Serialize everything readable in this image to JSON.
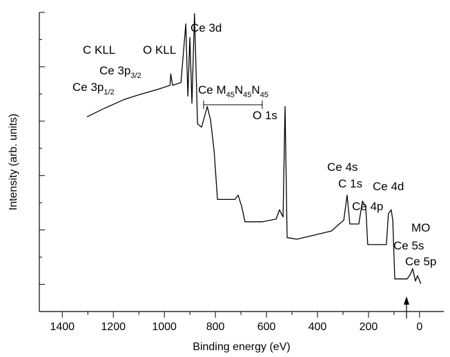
{
  "chart_data": {
    "type": "line",
    "xlabel": "Binding energy (eV)",
    "ylabel": "Intensity (arb. units)",
    "xlim": [
      1490,
      -95
    ],
    "ylim": [
      0,
      5.5
    ],
    "xticks": [
      1400,
      1200,
      1000,
      800,
      600,
      400,
      200,
      0
    ],
    "xticks_minor": [
      1300,
      1100,
      900,
      700,
      500,
      300,
      100
    ],
    "yticks": [
      0.5,
      1.5,
      2.5,
      3.5,
      4.5,
      5.5
    ],
    "yticks_minor": [
      1,
      2,
      3,
      4,
      5
    ],
    "series": [
      {
        "color": "#000000",
        "x": [
          1303,
          1238,
          1157,
          1103,
          1022,
          978,
          975,
          968,
          935,
          916,
          908,
          900,
          892,
          882,
          870,
          854,
          832,
          819,
          805,
          792,
          724,
          711,
          697,
          684,
          616,
          562,
          549,
          535,
          527,
          519,
          481,
          346,
          297,
          284,
          273,
          238,
          224,
          211,
          203,
          130,
          122,
          111,
          105,
          97,
          49,
          35,
          27,
          16,
          8,
          -5
        ],
        "values": [
          3.58,
          3.73,
          3.9,
          3.98,
          4.09,
          4.16,
          4.37,
          4.16,
          4.21,
          5.29,
          3.96,
          5.04,
          3.83,
          5.48,
          3.45,
          3.39,
          3.77,
          3.52,
          2.94,
          2.06,
          2.06,
          2.14,
          1.93,
          1.65,
          1.65,
          1.7,
          1.87,
          1.74,
          3.77,
          1.36,
          1.33,
          1.48,
          1.68,
          2.14,
          1.61,
          1.61,
          2.03,
          1.93,
          1.23,
          1.23,
          1.8,
          1.87,
          1.68,
          0.6,
          0.6,
          0.69,
          0.79,
          0.56,
          0.66,
          0.51
        ]
      }
    ],
    "annotations": [
      {
        "parts": [
          "C KLL"
        ]
      },
      {
        "parts": [
          "O KLL"
        ]
      },
      {
        "parts": [
          "Ce 3d"
        ]
      },
      {
        "parts": [
          "Ce 3p",
          "3/2"
        ]
      },
      {
        "parts": [
          "Ce 3p",
          "1/2"
        ]
      },
      {
        "parts": [
          "Ce M",
          "45",
          "N",
          "45",
          "N",
          "45"
        ]
      },
      {
        "parts": [
          "O 1s"
        ]
      },
      {
        "parts": [
          "Ce 4s"
        ]
      },
      {
        "parts": [
          "C 1s"
        ]
      },
      {
        "parts": [
          "Ce 4d"
        ]
      },
      {
        "parts": [
          "Ce 4p"
        ]
      },
      {
        "parts": [
          "MO"
        ]
      },
      {
        "parts": [
          "Ce 5s"
        ]
      },
      {
        "parts": [
          "Ce 5p"
        ]
      }
    ]
  }
}
